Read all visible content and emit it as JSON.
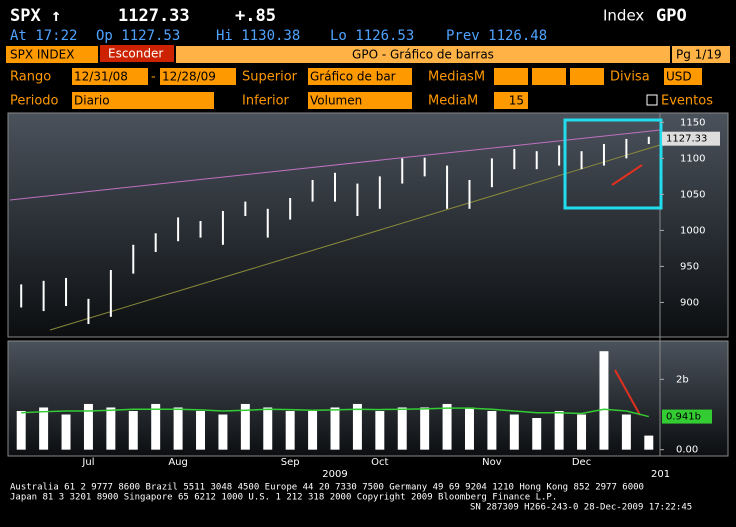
{
  "header": {
    "ticker": "SPX ↑",
    "price": "1127.33",
    "change": "+.85",
    "kind": "Index",
    "function": "GPO",
    "quote": [
      "At 17:22",
      "Op 1127.53",
      "Hi 1130.38",
      "Lo 1126.53",
      "Prev 1126.48"
    ]
  },
  "toolbar": {
    "security": "SPX INDEX",
    "hide": "Esconder",
    "title": "GPO - Gráfico de barras",
    "page": "Pg 1/19"
  },
  "form": {
    "range_label": "Rango",
    "range_start": "12/31/08",
    "range_sep": "-",
    "range_end": "12/28/09",
    "upper_label": "Superior",
    "upper_value": "Gráfico de bar",
    "averages_label": "MediasM",
    "currency_label": "Divisa",
    "currency_value": "USD",
    "period_label": "Periodo",
    "period_value": "Diario",
    "lower_label": "Inferior",
    "lower_value": "Volumen",
    "average_label": "MediaM",
    "average_value": "15",
    "events_label": "Eventos"
  },
  "chart_data": {
    "type": "bar-range",
    "categories": [
      null,
      null,
      null,
      "Jul",
      null,
      null,
      null,
      "Aug",
      null,
      null,
      null,
      null,
      "Sep",
      null,
      null,
      null,
      "Oct",
      null,
      null,
      null,
      null,
      "Nov",
      null,
      null,
      null,
      "Dec",
      null,
      null,
      null
    ],
    "year_label": "2009",
    "next_year_label": "201",
    "price": {
      "high": [
        925,
        930,
        934,
        905,
        945,
        980,
        996,
        1018,
        1013,
        1027,
        1040,
        1030,
        1045,
        1070,
        1080,
        1065,
        1075,
        1100,
        1101,
        1090,
        1070,
        1100,
        1113,
        1110,
        1118,
        1110,
        1120,
        1127,
        1130
      ],
      "low": [
        893,
        888,
        895,
        870,
        880,
        940,
        970,
        985,
        990,
        980,
        1020,
        990,
        1015,
        1040,
        1040,
        1020,
        1030,
        1065,
        1075,
        1030,
        1030,
        1060,
        1085,
        1085,
        1090,
        1085,
        1090,
        1100,
        1120
      ],
      "color": "#ffffff",
      "ylim": [
        852,
        1163
      ],
      "yticks": [
        900,
        950,
        1000,
        1050,
        1100,
        1150
      ],
      "last": 1127.33,
      "last_label": "1127.33"
    },
    "volume": {
      "values": [
        1.1,
        1.2,
        1.0,
        1.3,
        1.2,
        1.1,
        1.3,
        1.2,
        1.1,
        1.0,
        1.3,
        1.2,
        1.1,
        1.1,
        1.2,
        1.3,
        1.1,
        1.2,
        1.2,
        1.3,
        1.2,
        1.1,
        1.0,
        0.9,
        1.1,
        1.0,
        2.8,
        1.0,
        0.4
      ],
      "average": [
        1.05,
        1.08,
        1.1,
        1.1,
        1.12,
        1.15,
        1.15,
        1.15,
        1.13,
        1.1,
        1.12,
        1.15,
        1.14,
        1.12,
        1.13,
        1.15,
        1.14,
        1.15,
        1.16,
        1.18,
        1.18,
        1.15,
        1.1,
        1.05,
        1.05,
        1.03,
        1.15,
        1.1,
        0.941
      ],
      "color": "#ffffff",
      "average_color": "#33cc33",
      "ylim": [
        -0.18,
        3.09
      ],
      "yticks": [
        {
          "value": 0,
          "label": "0.00"
        },
        {
          "value": 2,
          "label": "2b"
        }
      ],
      "last": 0.941,
      "last_label": "0.941b"
    }
  },
  "footer": [
    "Australia 61 2 9777 8600 Brazil 5511 3048 4500 Europe 44 20 7330 7500 Germany 49 69 9204 1210 Hong Kong 852 2977 6000",
    "Japan 81 3 3201 8900    Singapore 65 6212 1000    U.S. 1 212 318 2000         Copyright 2009 Bloomberg Finance L.P.",
    "SN 287309 H266-243-0 28-Dec-2009 17:22:45"
  ]
}
